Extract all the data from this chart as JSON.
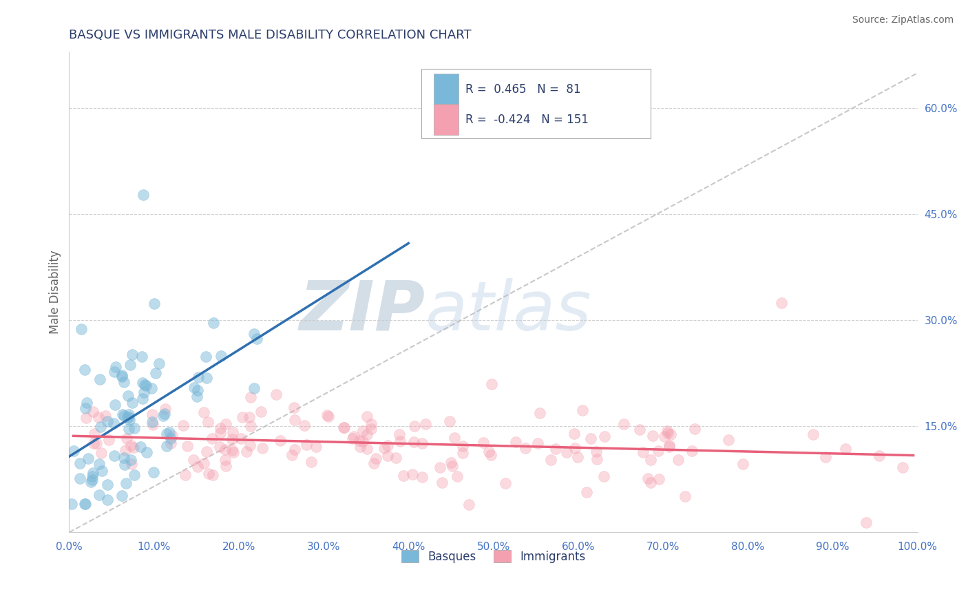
{
  "title": "BASQUE VS IMMIGRANTS MALE DISABILITY CORRELATION CHART",
  "source": "Source: ZipAtlas.com",
  "ylabel": "Male Disability",
  "xlim": [
    0.0,
    1.0
  ],
  "ylim": [
    0.0,
    0.68
  ],
  "xticks": [
    0.0,
    0.1,
    0.2,
    0.3,
    0.4,
    0.5,
    0.6,
    0.7,
    0.8,
    0.9,
    1.0
  ],
  "yticks_right": [
    0.15,
    0.3,
    0.45,
    0.6
  ],
  "ytick_labels_right": [
    "15.0%",
    "30.0%",
    "45.0%",
    "60.0%"
  ],
  "xtick_labels": [
    "0.0%",
    "10.0%",
    "20.0%",
    "30.0%",
    "40.0%",
    "50.0%",
    "60.0%",
    "70.0%",
    "80.0%",
    "90.0%",
    "100.0%"
  ],
  "basque_color": "#7ab8d9",
  "immigrant_color": "#f4a0b0",
  "basque_line_color": "#3070b0",
  "immigrant_line_color": "#e8607a",
  "ref_line_color": "#bbbbbb",
  "legend_R_basque": "0.465",
  "legend_N_basque": "81",
  "legend_R_immigrant": "-0.424",
  "legend_N_immigrant": "151",
  "title_color": "#2c3e6b",
  "axis_label_color": "#666666",
  "tick_color": "#4472c4",
  "watermark_zip": "ZIP",
  "watermark_atlas": "atlas",
  "background_color": "#ffffff",
  "grid_color": "#cccccc",
  "basque_scatter_seed": 12,
  "immigrant_scatter_seed": 7
}
